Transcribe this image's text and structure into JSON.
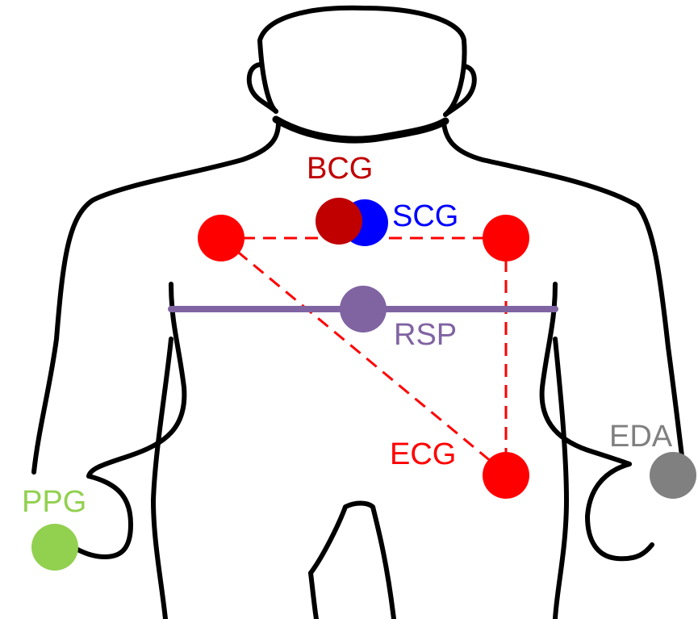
{
  "sensors": {
    "bcg": {
      "label": "BCG",
      "color": "#c00000"
    },
    "scg": {
      "label": "SCG",
      "color": "#0000ff"
    },
    "ecg": {
      "label": "ECG",
      "color": "#ff0000"
    },
    "rsp": {
      "label": "RSP",
      "color": "#8064a2"
    },
    "eda": {
      "label": "EDA",
      "color": "#808080"
    },
    "ppg": {
      "label": "PPG",
      "color": "#92d050"
    }
  },
  "colors": {
    "outline": "#000000",
    "background": "#ffffff"
  }
}
